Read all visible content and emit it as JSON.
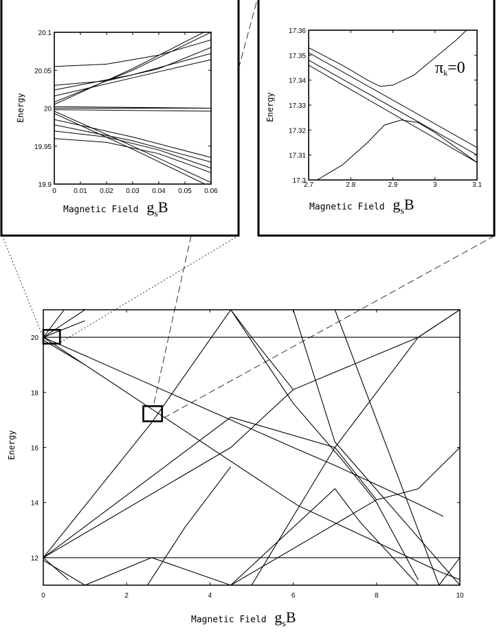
{
  "figure": {
    "callouts": [
      {
        "name": "inset-left-callout",
        "from": "main-zoom-box-1",
        "to": "inset-left"
      },
      {
        "name": "inset-right-callout",
        "from": "main-zoom-box-2",
        "to": "inset-right"
      }
    ]
  },
  "chart_data": [
    {
      "id": "inset-left",
      "type": "line",
      "xlabel": "Magnetic Field",
      "xlabel_symbol": "g",
      "xlabel_sub": "s",
      "xlabel_tail": "B",
      "ylabel": "Energy",
      "xlim": [
        0,
        0.06
      ],
      "ylim": [
        19.9,
        20.1
      ],
      "xticks": [
        "0",
        "0.01",
        "0.02",
        "0.03",
        "0.04",
        "0.05",
        "0.06"
      ],
      "yticks": [
        "19.9",
        "19.95",
        "20",
        "20.05",
        "20.1"
      ],
      "series": [
        {
          "x": [
            0,
            0.02,
            0.04,
            0.06
          ],
          "y": [
            20.055,
            20.058,
            20.07,
            20.09
          ]
        },
        {
          "x": [
            0,
            0.02,
            0.04,
            0.06
          ],
          "y": [
            20.03,
            20.036,
            20.052,
            20.08
          ]
        },
        {
          "x": [
            0,
            0.03,
            0.06
          ],
          "y": [
            20.024,
            20.044,
            20.072
          ]
        },
        {
          "x": [
            0,
            0.03,
            0.06
          ],
          "y": [
            20.016,
            20.04,
            20.064
          ]
        },
        {
          "x": [
            0,
            0.03,
            0.06
          ],
          "y": [
            20.008,
            20.05,
            20.1
          ]
        },
        {
          "x": [
            0,
            0.03,
            0.06
          ],
          "y": [
            20.005,
            20.052,
            20.105
          ]
        },
        {
          "x": [
            0,
            0.06
          ],
          "y": [
            20.002,
            20.0
          ]
        },
        {
          "x": [
            0,
            0.06
          ],
          "y": [
            20.0,
            20.0
          ]
        },
        {
          "x": [
            0,
            0.06
          ],
          "y": [
            19.998,
            19.996
          ]
        },
        {
          "x": [
            0,
            0.03,
            0.06
          ],
          "y": [
            19.996,
            19.95,
            19.902
          ]
        },
        {
          "x": [
            0,
            0.03,
            0.06
          ],
          "y": [
            19.993,
            19.946,
            19.896
          ]
        },
        {
          "x": [
            0,
            0.03,
            0.06
          ],
          "y": [
            19.985,
            19.962,
            19.935
          ]
        },
        {
          "x": [
            0,
            0.03,
            0.06
          ],
          "y": [
            19.978,
            19.957,
            19.929
          ]
        },
        {
          "x": [
            0,
            0.02,
            0.04,
            0.06
          ],
          "y": [
            19.97,
            19.962,
            19.945,
            19.921
          ]
        },
        {
          "x": [
            0,
            0.02,
            0.04,
            0.06
          ],
          "y": [
            19.96,
            19.955,
            19.94,
            19.915
          ]
        }
      ]
    },
    {
      "id": "inset-right",
      "type": "line",
      "xlabel": "Magnetic Field",
      "xlabel_symbol": "g",
      "xlabel_sub": "s",
      "xlabel_tail": "B",
      "ylabel": "Energy",
      "annotation": {
        "symbol": "π",
        "sub": "k",
        "tail": "=0"
      },
      "xlim": [
        2.7,
        3.1
      ],
      "ylim": [
        17.3,
        17.36
      ],
      "xticks": [
        "2.7",
        "2.8",
        "2.9",
        "3",
        "3.1"
      ],
      "yticks": [
        "17.3",
        "17.31",
        "17.32",
        "17.33",
        "17.34",
        "17.35",
        "17.36"
      ],
      "series": [
        {
          "x": [
            2.7,
            2.78,
            2.84,
            2.87,
            2.9,
            2.95,
            3.0,
            3.05,
            3.1
          ],
          "y": [
            17.353,
            17.346,
            17.34,
            17.3375,
            17.338,
            17.342,
            17.349,
            17.356,
            17.364
          ]
        },
        {
          "x": [
            2.7,
            3.1
          ],
          "y": [
            17.351,
            17.313
          ]
        },
        {
          "x": [
            2.7,
            3.1
          ],
          "y": [
            17.348,
            17.31
          ]
        },
        {
          "x": [
            2.7,
            3.1
          ],
          "y": [
            17.346,
            17.307
          ]
        },
        {
          "x": [
            2.72,
            2.78,
            2.84,
            2.88,
            2.92,
            2.96,
            3.0,
            3.05,
            3.1
          ],
          "y": [
            17.3,
            17.306,
            17.315,
            17.322,
            17.324,
            17.323,
            17.319,
            17.313,
            17.307
          ]
        }
      ]
    },
    {
      "id": "main",
      "type": "line",
      "xlabel": "Magnetic Field",
      "xlabel_symbol": "g",
      "xlabel_sub": "s",
      "xlabel_tail": "B",
      "ylabel": "Energy",
      "xlim": [
        0,
        10
      ],
      "ylim": [
        11,
        21
      ],
      "xticks": [
        "0",
        "2",
        "4",
        "6",
        "8",
        "10"
      ],
      "yticks": [
        "12",
        "14",
        "16",
        "18",
        "20"
      ],
      "zoom_boxes": [
        {
          "name": "main-zoom-box-1",
          "x": [
            0,
            0.4
          ],
          "y": [
            19.77,
            20.27
          ]
        },
        {
          "name": "main-zoom-box-2",
          "x": [
            2.4,
            2.85
          ],
          "y": [
            16.95,
            17.5
          ]
        }
      ],
      "series": [
        {
          "x": [
            0,
            10
          ],
          "y": [
            20,
            20
          ]
        },
        {
          "x": [
            0,
            10
          ],
          "y": [
            12,
            12
          ]
        },
        {
          "x": [
            0,
            1.0
          ],
          "y": [
            20,
            21
          ]
        },
        {
          "x": [
            0,
            0.5
          ],
          "y": [
            20,
            21
          ]
        },
        {
          "x": [
            0,
            1.0
          ],
          "y": [
            20,
            20.6
          ]
        },
        {
          "x": [
            0,
            4.5,
            6.0,
            7.0,
            9.0,
            9.6
          ],
          "y": [
            20,
            17.0,
            16.0,
            15.35,
            13.95,
            13.5
          ]
        },
        {
          "x": [
            0,
            2.7,
            6.1,
            9.5,
            10
          ],
          "y": [
            20,
            17.3,
            13.9,
            11.5,
            11.2
          ]
        },
        {
          "x": [
            0,
            1.0
          ],
          "y": [
            19.9,
            19.0
          ]
        },
        {
          "x": [
            0,
            2.6,
            4.5,
            5.0,
            6.0
          ],
          "y": [
            12,
            16.9,
            21.0,
            20.0,
            18.1
          ]
        },
        {
          "x": [
            0,
            2.3,
            4.5,
            7.0,
            8.0
          ],
          "y": [
            12,
            14.6,
            17.1,
            16.0,
            14.1
          ]
        },
        {
          "x": [
            0,
            4.5,
            6.0,
            9.0,
            10
          ],
          "y": [
            12,
            16.0,
            18.1,
            20.0,
            21.0
          ]
        },
        {
          "x": [
            0,
            0.6
          ],
          "y": [
            12,
            11.2
          ]
        },
        {
          "x": [
            0,
            1.0
          ],
          "y": [
            11.9,
            11.0
          ]
        },
        {
          "x": [
            1.0,
            2.6,
            4.5,
            7.0,
            7.6,
            9.0
          ],
          "y": [
            11,
            12.0,
            11.0,
            14.5,
            13.3,
            11.0
          ]
        },
        {
          "x": [
            4.5,
            8.0,
            9.0,
            10
          ],
          "y": [
            11,
            14.1,
            14.5,
            16.0
          ]
        },
        {
          "x": [
            5.0,
            7.0,
            8.0,
            9.0,
            10
          ],
          "y": [
            11,
            16.0,
            18.0,
            20.0,
            21.0
          ]
        },
        {
          "x": [
            6.0,
            7.0,
            10
          ],
          "y": [
            21.0,
            16.2,
            11.0
          ]
        },
        {
          "x": [
            7.0,
            8.3
          ],
          "y": [
            21.0,
            21.0
          ]
        },
        {
          "x": [
            7.0,
            9.5,
            10
          ],
          "y": [
            21.0,
            11.0,
            12.0
          ]
        },
        {
          "x": [
            4.5,
            6.0,
            7.2,
            8.0,
            9.0
          ],
          "y": [
            21.0,
            17.6,
            15.5,
            14.0,
            11.2
          ]
        },
        {
          "x": [
            2.5,
            3.4,
            4.5
          ],
          "y": [
            11.0,
            13.1,
            15.3
          ]
        }
      ]
    }
  ]
}
